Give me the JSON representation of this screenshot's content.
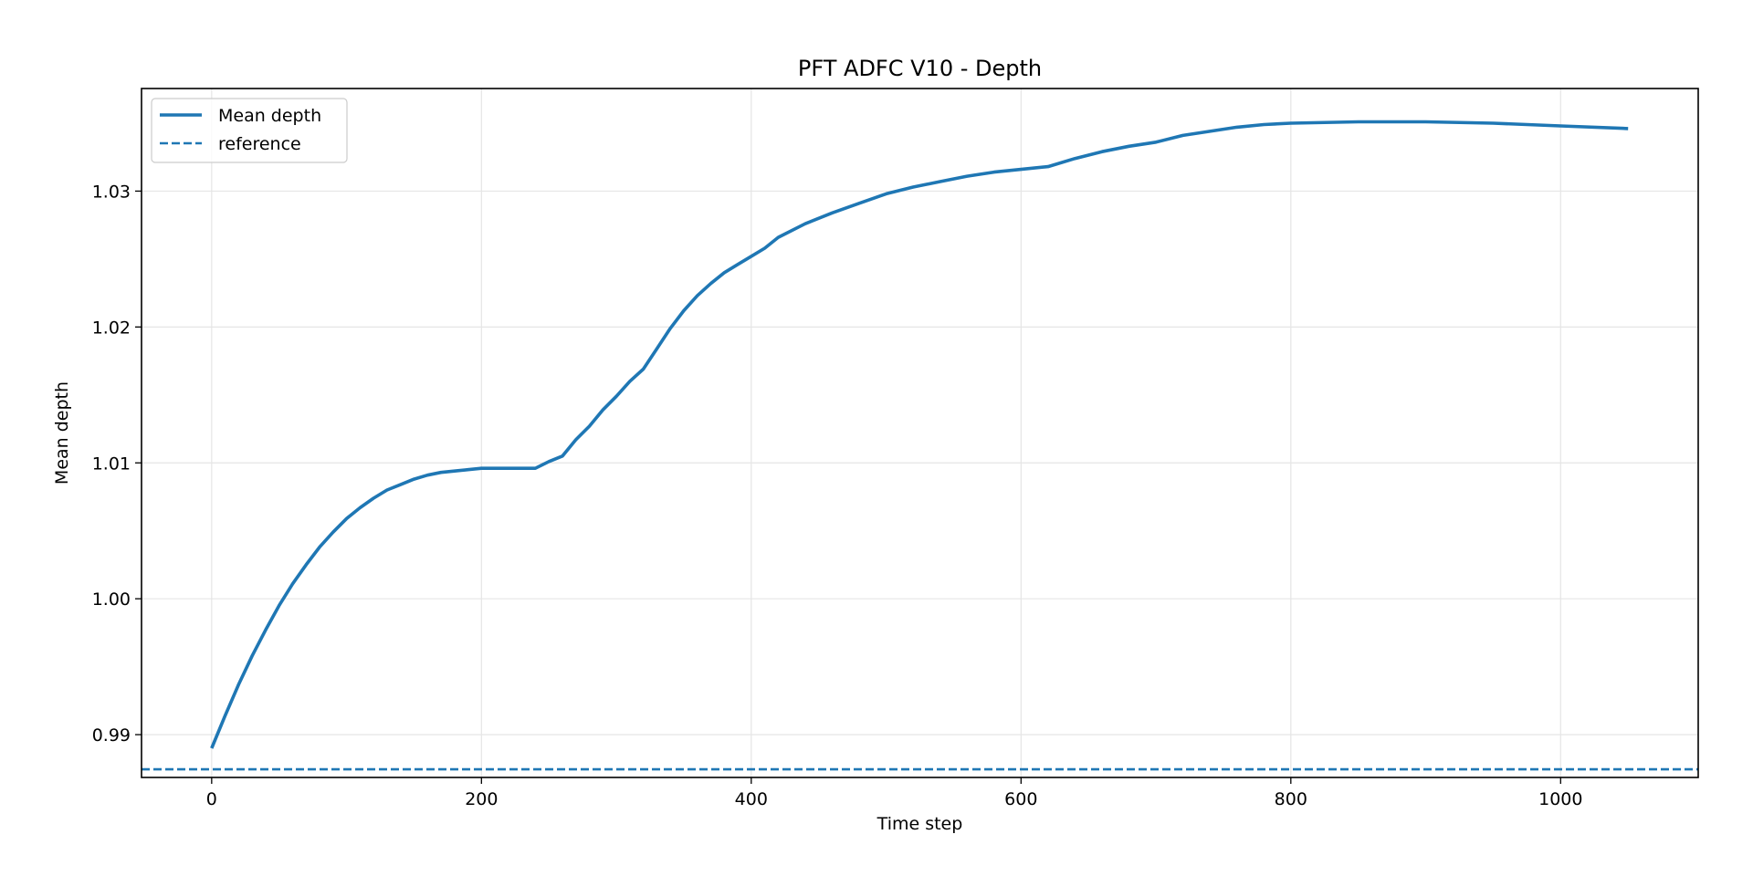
{
  "chart_data": {
    "type": "line",
    "title": "PFT ADFC V10 - Depth",
    "xlabel": "Time step",
    "ylabel": "Mean depth",
    "xlim": [
      -52,
      1102
    ],
    "ylim": [
      0.98685,
      1.03755
    ],
    "x_ticks": [
      0,
      200,
      400,
      600,
      800,
      1000
    ],
    "y_ticks": [
      0.99,
      1.0,
      1.01,
      1.02,
      1.03
    ],
    "x_tick_labels": [
      "0",
      "200",
      "400",
      "600",
      "800",
      "1000"
    ],
    "y_tick_labels": [
      "0.99",
      "1.00",
      "1.01",
      "1.02",
      "1.03"
    ],
    "grid": true,
    "legend_position": "top-left",
    "colors": {
      "series": "#1f77b4",
      "grid": "#e5e5e5",
      "axes": "#000000"
    },
    "series": [
      {
        "name": "Mean depth",
        "style": "solid",
        "x": [
          0,
          10,
          20,
          30,
          40,
          50,
          60,
          70,
          80,
          90,
          100,
          110,
          120,
          130,
          140,
          150,
          160,
          170,
          180,
          190,
          200,
          210,
          220,
          230,
          240,
          250,
          260,
          270,
          280,
          290,
          300,
          310,
          320,
          330,
          340,
          350,
          360,
          370,
          380,
          390,
          400,
          410,
          420,
          440,
          460,
          480,
          500,
          520,
          540,
          560,
          580,
          600,
          620,
          640,
          660,
          680,
          700,
          720,
          740,
          760,
          780,
          800,
          850,
          900,
          950,
          1000,
          1050
        ],
        "y": [
          0.989,
          0.9914,
          0.9937,
          0.9958,
          0.9977,
          0.9995,
          1.0011,
          1.0025,
          1.0038,
          1.0049,
          1.0059,
          1.0067,
          1.0074,
          1.008,
          1.0084,
          1.0088,
          1.0091,
          1.0093,
          1.0094,
          1.0095,
          1.0096,
          1.0096,
          1.0096,
          1.0096,
          1.0096,
          1.0101,
          1.0105,
          1.0117,
          1.0127,
          1.0139,
          1.0149,
          1.016,
          1.0169,
          1.0184,
          1.0199,
          1.0212,
          1.0223,
          1.0232,
          1.024,
          1.0246,
          1.0252,
          1.0258,
          1.0266,
          1.0276,
          1.0284,
          1.0291,
          1.0298,
          1.0303,
          1.0307,
          1.0311,
          1.0314,
          1.0316,
          1.0318,
          1.0324,
          1.0329,
          1.0333,
          1.0336,
          1.0341,
          1.0344,
          1.0347,
          1.0349,
          1.035,
          1.0351,
          1.0351,
          1.035,
          1.0348,
          1.0346
        ]
      },
      {
        "name": "reference",
        "style": "dashed",
        "constant_y": 0.98745
      }
    ]
  }
}
